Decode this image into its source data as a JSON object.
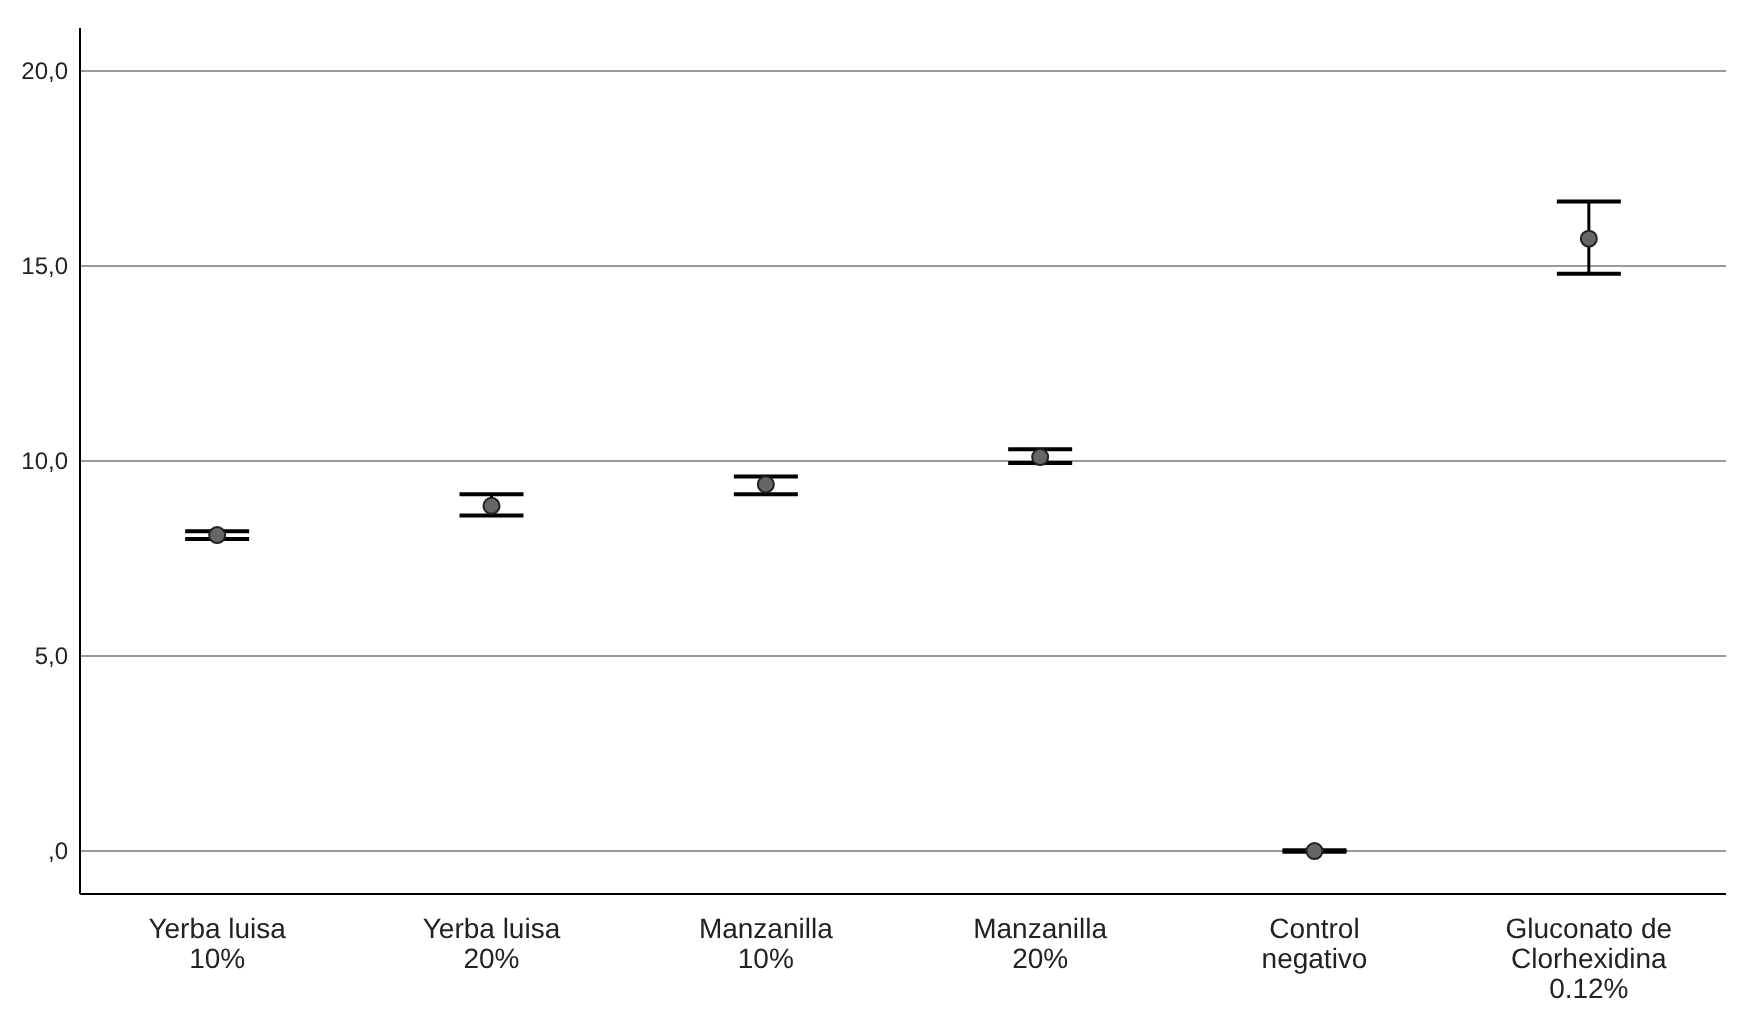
{
  "chart_data": {
    "type": "scatter",
    "categories": [
      "Yerba luisa\n10%",
      "Yerba luisa\n20%",
      "Manzanilla\n10%",
      "Manzanilla\n20%",
      "Control\nnegativo",
      "Gluconato de\nClorhexidina\n0.12%"
    ],
    "series": [
      {
        "color": "#666666",
        "values": [
          8.1,
          8.85,
          9.4,
          10.1,
          0.0,
          15.7
        ],
        "errors": [
          [
            8.0,
            8.2
          ],
          [
            8.6,
            9.15
          ],
          [
            9.15,
            9.6
          ],
          [
            9.95,
            10.3
          ],
          [
            -0.02,
            0.02
          ],
          [
            14.8,
            16.65
          ]
        ]
      }
    ],
    "ylim": [
      -1.1,
      21.1
    ],
    "yticks": [
      {
        "value": 0,
        "label": ",0"
      },
      {
        "value": 5,
        "label": "5,0"
      },
      {
        "value": 10,
        "label": "10,0"
      },
      {
        "value": 15,
        "label": "15,0"
      },
      {
        "value": 20,
        "label": "20,0"
      }
    ],
    "grid": "y",
    "marker": "circle"
  }
}
